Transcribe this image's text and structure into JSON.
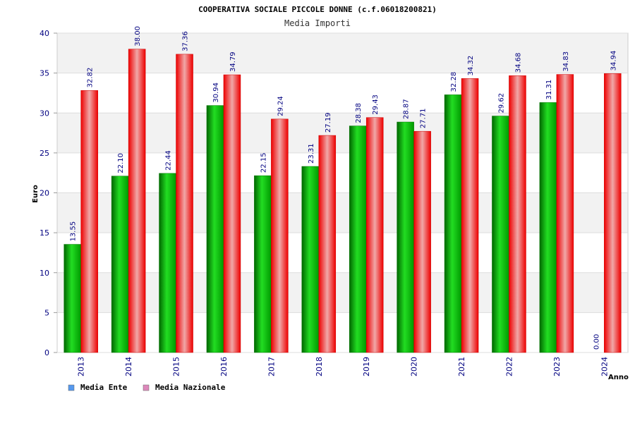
{
  "chart_data": {
    "type": "bar",
    "title": "COOPERATIVA SOCIALE PICCOLE DONNE (c.f.06018200821)",
    "subtitle": "Media Importi",
    "xlabel": "Anno",
    "ylabel": "Euro",
    "ylim": [
      0,
      40
    ],
    "yticks": [
      0,
      5,
      10,
      15,
      20,
      25,
      30,
      35,
      40
    ],
    "grid": true,
    "legend_position": "bottom-left",
    "categories": [
      "2013",
      "2014",
      "2015",
      "2016",
      "2017",
      "2018",
      "2019",
      "2020",
      "2021",
      "2022",
      "2023",
      "2024"
    ],
    "series": [
      {
        "name": "Media Ente",
        "color": "#00aa00",
        "legend_color": "#5599ee",
        "values": [
          13.55,
          22.1,
          22.44,
          30.94,
          22.15,
          23.31,
          28.38,
          28.87,
          32.28,
          29.62,
          31.31,
          0.0
        ],
        "labels": [
          "13.55",
          "22.10",
          "22.44",
          "30.94",
          "22.15",
          "23.31",
          "28.38",
          "28.87",
          "32.28",
          "29.62",
          "31.31",
          "0.00"
        ]
      },
      {
        "name": "Media Nazionale",
        "color": "#ee0000",
        "legend_color": "#dd88bb",
        "values": [
          32.82,
          38.0,
          37.36,
          34.79,
          29.24,
          27.19,
          29.43,
          27.71,
          34.32,
          34.68,
          34.83,
          34.94
        ],
        "labels": [
          "32.82",
          "38.00",
          "37.36",
          "34.79",
          "29.24",
          "27.19",
          "29.43",
          "27.71",
          "34.32",
          "34.68",
          "34.83",
          "34.94"
        ]
      }
    ]
  }
}
